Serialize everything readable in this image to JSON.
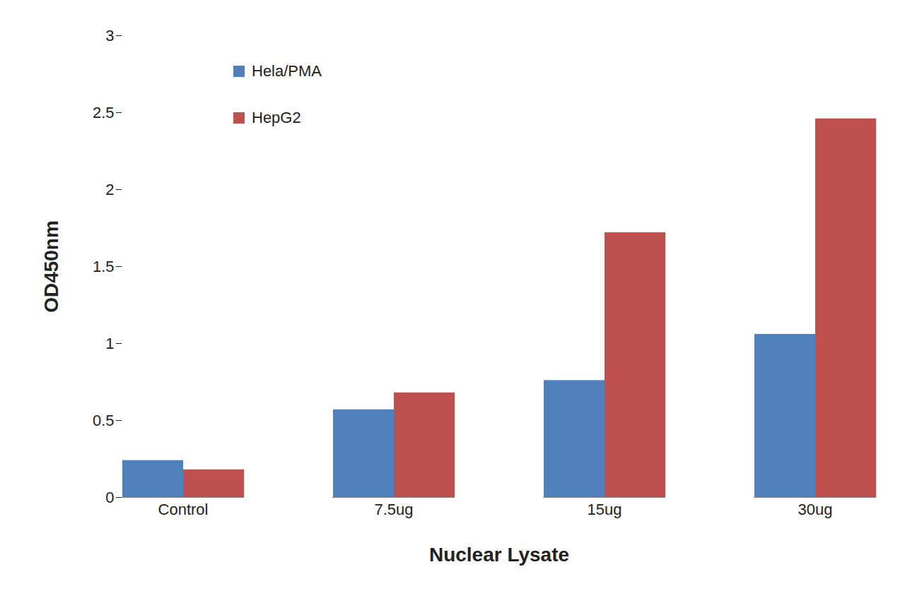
{
  "chart_data": {
    "type": "bar",
    "x_label": "Nuclear Lysate",
    "y_label": "OD450nm",
    "categories": [
      "Control",
      "7.5ug",
      "15ug",
      "30ug"
    ],
    "series": [
      {
        "name": "Hela/PMA",
        "color": "#4f81bd",
        "values": [
          0.24,
          0.57,
          0.76,
          1.06
        ]
      },
      {
        "name": "HepG2",
        "color": "#c0504d",
        "values": [
          0.18,
          0.68,
          1.72,
          2.46
        ]
      }
    ],
    "ylim": [
      0,
      3
    ],
    "yticks": [
      0,
      0.5,
      1,
      1.5,
      2,
      2.5,
      3
    ],
    "grid": false,
    "legend": "top-left"
  }
}
